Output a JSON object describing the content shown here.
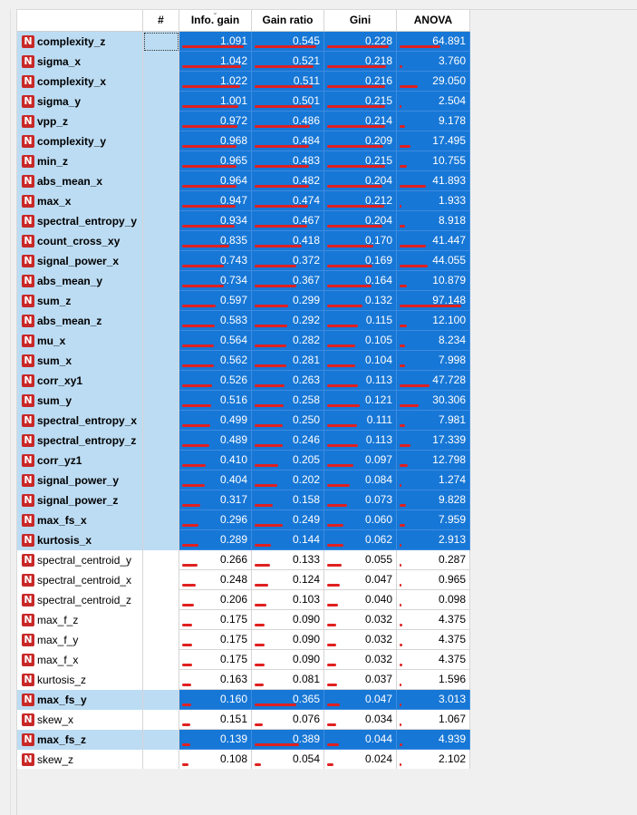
{
  "columns": [
    "#",
    "Info. gain",
    "Gain ratio",
    "Gini",
    "ANOVA"
  ],
  "max": {
    "info_gain": 1.091,
    "gain_ratio": 0.545,
    "gini": 0.228,
    "anova": 97.148
  },
  "rows": [
    {
      "name": "complexity_z",
      "selected": true,
      "info_gain": "1.091",
      "gain_ratio": "0.545",
      "gini": "0.228",
      "anova": "64.891"
    },
    {
      "name": "sigma_x",
      "selected": true,
      "info_gain": "1.042",
      "gain_ratio": "0.521",
      "gini": "0.218",
      "anova": "3.760"
    },
    {
      "name": "complexity_x",
      "selected": true,
      "info_gain": "1.022",
      "gain_ratio": "0.511",
      "gini": "0.216",
      "anova": "29.050"
    },
    {
      "name": "sigma_y",
      "selected": true,
      "info_gain": "1.001",
      "gain_ratio": "0.501",
      "gini": "0.215",
      "anova": "2.504"
    },
    {
      "name": "vpp_z",
      "selected": true,
      "info_gain": "0.972",
      "gain_ratio": "0.486",
      "gini": "0.214",
      "anova": "9.178"
    },
    {
      "name": "complexity_y",
      "selected": true,
      "info_gain": "0.968",
      "gain_ratio": "0.484",
      "gini": "0.209",
      "anova": "17.495"
    },
    {
      "name": "min_z",
      "selected": true,
      "info_gain": "0.965",
      "gain_ratio": "0.483",
      "gini": "0.215",
      "anova": "10.755"
    },
    {
      "name": "abs_mean_x",
      "selected": true,
      "info_gain": "0.964",
      "gain_ratio": "0.482",
      "gini": "0.204",
      "anova": "41.893"
    },
    {
      "name": "max_x",
      "selected": true,
      "info_gain": "0.947",
      "gain_ratio": "0.474",
      "gini": "0.212",
      "anova": "1.933"
    },
    {
      "name": "spectral_entropy_y",
      "selected": true,
      "info_gain": "0.934",
      "gain_ratio": "0.467",
      "gini": "0.204",
      "anova": "8.918"
    },
    {
      "name": "count_cross_xy",
      "selected": true,
      "info_gain": "0.835",
      "gain_ratio": "0.418",
      "gini": "0.170",
      "anova": "41.447"
    },
    {
      "name": "signal_power_x",
      "selected": true,
      "info_gain": "0.743",
      "gain_ratio": "0.372",
      "gini": "0.169",
      "anova": "44.055"
    },
    {
      "name": "abs_mean_y",
      "selected": true,
      "info_gain": "0.734",
      "gain_ratio": "0.367",
      "gini": "0.164",
      "anova": "10.879"
    },
    {
      "name": "sum_z",
      "selected": true,
      "info_gain": "0.597",
      "gain_ratio": "0.299",
      "gini": "0.132",
      "anova": "97.148"
    },
    {
      "name": "abs_mean_z",
      "selected": true,
      "info_gain": "0.583",
      "gain_ratio": "0.292",
      "gini": "0.115",
      "anova": "12.100"
    },
    {
      "name": "mu_x",
      "selected": true,
      "info_gain": "0.564",
      "gain_ratio": "0.282",
      "gini": "0.105",
      "anova": "8.234"
    },
    {
      "name": "sum_x",
      "selected": true,
      "info_gain": "0.562",
      "gain_ratio": "0.281",
      "gini": "0.104",
      "anova": "7.998"
    },
    {
      "name": "corr_xy1",
      "selected": true,
      "info_gain": "0.526",
      "gain_ratio": "0.263",
      "gini": "0.113",
      "anova": "47.728"
    },
    {
      "name": "sum_y",
      "selected": true,
      "info_gain": "0.516",
      "gain_ratio": "0.258",
      "gini": "0.121",
      "anova": "30.306"
    },
    {
      "name": "spectral_entropy_x",
      "selected": true,
      "info_gain": "0.499",
      "gain_ratio": "0.250",
      "gini": "0.111",
      "anova": "7.981"
    },
    {
      "name": "spectral_entropy_z",
      "selected": true,
      "info_gain": "0.489",
      "gain_ratio": "0.246",
      "gini": "0.113",
      "anova": "17.339"
    },
    {
      "name": "corr_yz1",
      "selected": true,
      "info_gain": "0.410",
      "gain_ratio": "0.205",
      "gini": "0.097",
      "anova": "12.798"
    },
    {
      "name": "signal_power_y",
      "selected": true,
      "info_gain": "0.404",
      "gain_ratio": "0.202",
      "gini": "0.084",
      "anova": "1.274"
    },
    {
      "name": "signal_power_z",
      "selected": true,
      "info_gain": "0.317",
      "gain_ratio": "0.158",
      "gini": "0.073",
      "anova": "9.828"
    },
    {
      "name": "max_fs_x",
      "selected": true,
      "info_gain": "0.296",
      "gain_ratio": "0.249",
      "gini": "0.060",
      "anova": "7.959"
    },
    {
      "name": "kurtosis_x",
      "selected": true,
      "info_gain": "0.289",
      "gain_ratio": "0.144",
      "gini": "0.062",
      "anova": "2.913"
    },
    {
      "name": "spectral_centroid_y",
      "selected": false,
      "info_gain": "0.266",
      "gain_ratio": "0.133",
      "gini": "0.055",
      "anova": "0.287"
    },
    {
      "name": "spectral_centroid_x",
      "selected": false,
      "info_gain": "0.248",
      "gain_ratio": "0.124",
      "gini": "0.047",
      "anova": "0.965"
    },
    {
      "name": "spectral_centroid_z",
      "selected": false,
      "info_gain": "0.206",
      "gain_ratio": "0.103",
      "gini": "0.040",
      "anova": "0.098"
    },
    {
      "name": "max_f_z",
      "selected": false,
      "info_gain": "0.175",
      "gain_ratio": "0.090",
      "gini": "0.032",
      "anova": "4.375"
    },
    {
      "name": "max_f_y",
      "selected": false,
      "info_gain": "0.175",
      "gain_ratio": "0.090",
      "gini": "0.032",
      "anova": "4.375"
    },
    {
      "name": "max_f_x",
      "selected": false,
      "info_gain": "0.175",
      "gain_ratio": "0.090",
      "gini": "0.032",
      "anova": "4.375"
    },
    {
      "name": "kurtosis_z",
      "selected": false,
      "info_gain": "0.163",
      "gain_ratio": "0.081",
      "gini": "0.037",
      "anova": "1.596"
    },
    {
      "name": "max_fs_y",
      "selected": true,
      "info_gain": "0.160",
      "gain_ratio": "0.365",
      "gini": "0.047",
      "anova": "3.013"
    },
    {
      "name": "skew_x",
      "selected": false,
      "info_gain": "0.151",
      "gain_ratio": "0.076",
      "gini": "0.034",
      "anova": "1.067"
    },
    {
      "name": "max_fs_z",
      "selected": true,
      "info_gain": "0.139",
      "gain_ratio": "0.389",
      "gini": "0.044",
      "anova": "4.939"
    },
    {
      "name": "skew_z",
      "selected": false,
      "info_gain": "0.108",
      "gain_ratio": "0.054",
      "gini": "0.024",
      "anova": "2.102"
    }
  ],
  "colors": {
    "selected_value_bg": "#1777d6",
    "selected_name_bg": "#bcdcf3",
    "bar": "#e02020",
    "badge": "#c82828"
  },
  "badge_letter": "N",
  "sort_indicator": "⌄"
}
